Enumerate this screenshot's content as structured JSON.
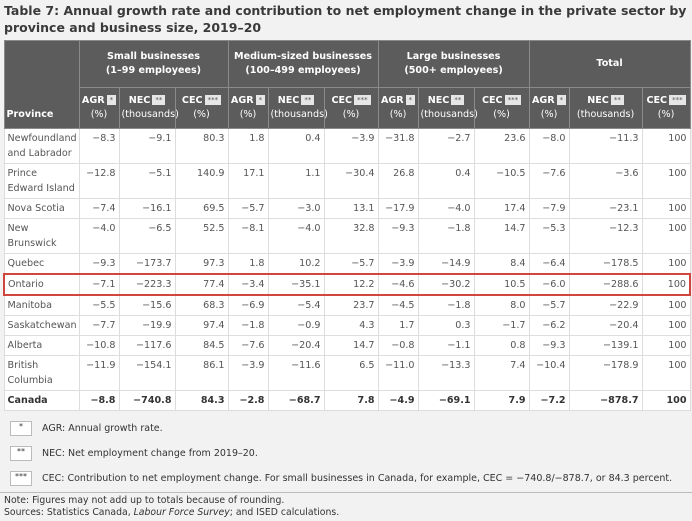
{
  "title": "Table 7: Annual growth rate and contribution to net employment change in the private sector by province and business size, 2019–20",
  "header": {
    "province": "Province",
    "groups": [
      {
        "name": "Small businesses",
        "sub": "(1–99 employees)"
      },
      {
        "name": "Medium-sized businesses",
        "sub": "(100–499 employees)"
      },
      {
        "name": "Large businesses",
        "sub": "(500+ employees)"
      },
      {
        "name": "Total",
        "sub": ""
      }
    ],
    "cols": [
      {
        "abbr": "AGR",
        "fn": "*",
        "unit": "(%)"
      },
      {
        "abbr": "NEC",
        "fn": "**",
        "unit": "(thousands)"
      },
      {
        "abbr": "CEC",
        "fn": "***",
        "unit": "(%)"
      }
    ]
  },
  "rows": [
    {
      "province": "Newfoundland and Labrador",
      "v": [
        "−8.3",
        "−9.1",
        "80.3",
        "1.8",
        "0.4",
        "−3.9",
        "−31.8",
        "−2.7",
        "23.6",
        "−8.0",
        "−11.3",
        "100"
      ]
    },
    {
      "province": "Prince Edward Island",
      "v": [
        "−12.8",
        "−5.1",
        "140.9",
        "17.1",
        "1.1",
        "−30.4",
        "26.8",
        "0.4",
        "−10.5",
        "−7.6",
        "−3.6",
        "100"
      ]
    },
    {
      "province": "Nova Scotia",
      "v": [
        "−7.4",
        "−16.1",
        "69.5",
        "−5.7",
        "−3.0",
        "13.1",
        "−17.9",
        "−4.0",
        "17.4",
        "−7.9",
        "−23.1",
        "100"
      ]
    },
    {
      "province": "New Brunswick",
      "v": [
        "−4.0",
        "−6.5",
        "52.5",
        "−8.1",
        "−4.0",
        "32.8",
        "−9.3",
        "−1.8",
        "14.7",
        "−5.3",
        "−12.3",
        "100"
      ]
    },
    {
      "province": "Quebec",
      "v": [
        "−9.3",
        "−173.7",
        "97.3",
        "1.8",
        "10.2",
        "−5.7",
        "−3.9",
        "−14.9",
        "8.4",
        "−6.4",
        "−178.5",
        "100"
      ]
    },
    {
      "province": "Ontario",
      "v": [
        "−7.1",
        "−223.3",
        "77.4",
        "−3.4",
        "−35.1",
        "12.2",
        "−4.6",
        "−30.2",
        "10.5",
        "−6.0",
        "−288.6",
        "100"
      ]
    },
    {
      "province": "Manitoba",
      "v": [
        "−5.5",
        "−15.6",
        "68.3",
        "−6.9",
        "−5.4",
        "23.7",
        "−4.5",
        "−1.8",
        "8.0",
        "−5.7",
        "−22.9",
        "100"
      ]
    },
    {
      "province": "Saskatchewan",
      "v": [
        "−7.7",
        "−19.9",
        "97.4",
        "−1.8",
        "−0.9",
        "4.3",
        "1.7",
        "0.3",
        "−1.7",
        "−6.2",
        "−20.4",
        "100"
      ]
    },
    {
      "province": "Alberta",
      "v": [
        "−10.8",
        "−117.6",
        "84.5",
        "−7.6",
        "−20.4",
        "14.7",
        "−0.8",
        "−1.1",
        "0.8",
        "−9.3",
        "−139.1",
        "100"
      ]
    },
    {
      "province": "British Columbia",
      "v": [
        "−11.9",
        "−154.1",
        "86.1",
        "−3.9",
        "−11.6",
        "6.5",
        "−11.0",
        "−13.3",
        "7.4",
        "−10.4",
        "−178.9",
        "100"
      ]
    },
    {
      "province": "Canada",
      "v": [
        "−8.8",
        "−740.8",
        "84.3",
        "−2.8",
        "−68.7",
        "7.8",
        "−4.9",
        "−69.1",
        "7.9",
        "−7.2",
        "−878.7",
        "100"
      ]
    }
  ],
  "highlight_row": "Ontario",
  "legend": [
    {
      "mark": "*",
      "text": "AGR: Annual growth rate."
    },
    {
      "mark": "**",
      "text": "NEC: Net employment change from 2019–20."
    },
    {
      "mark": "***",
      "text": "CEC: Contribution to net employment change. For small businesses in Canada, for example, CEC = −740.8/−878.7, or 84.3 percent."
    }
  ],
  "note": "Note: Figures may not add up to totals because of rounding.",
  "sources_prefix": "Sources: Statistics Canada, ",
  "sources_italic": "Labour Force Survey",
  "sources_suffix": "; and ISED calculations."
}
